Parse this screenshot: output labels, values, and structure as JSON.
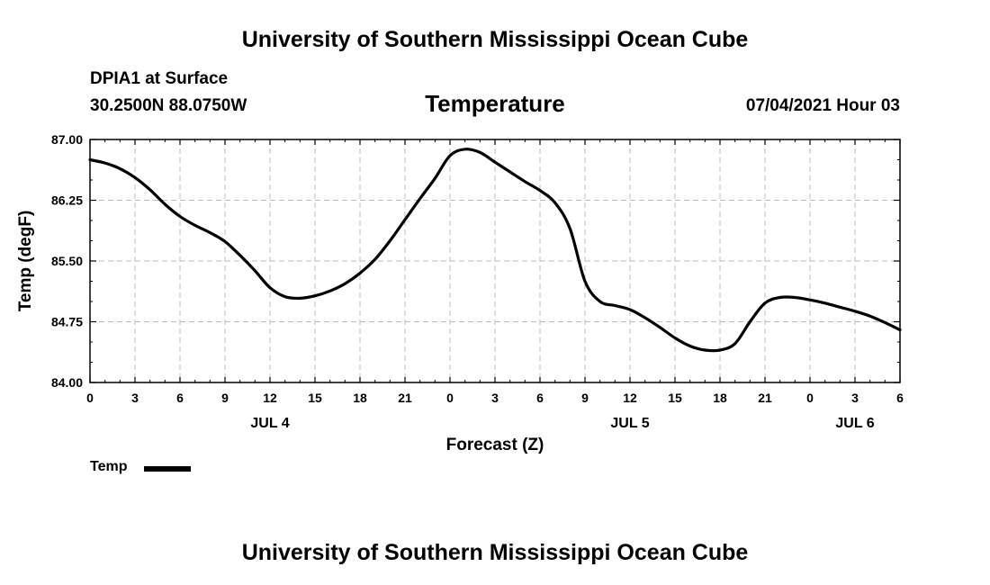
{
  "header": {
    "title": "University of Southern Mississippi Ocean Cube",
    "station": "DPIA1 at Surface",
    "coords": "30.2500N  88.0750W",
    "variable": "Temperature",
    "date": "07/04/2021 Hour 03"
  },
  "footer": {
    "title": "University of Southern Mississippi Ocean Cube"
  },
  "legend": {
    "label": "Temp"
  },
  "chart_data": {
    "type": "line",
    "title": "Temperature",
    "xlabel": "Forecast (Z)",
    "ylabel": "Temp (degF)",
    "xlim": [
      0,
      54
    ],
    "ylim": [
      84.0,
      87.0
    ],
    "x_ticks": [
      0,
      3,
      6,
      9,
      12,
      15,
      18,
      21,
      24,
      27,
      30,
      33,
      36,
      39,
      42,
      45,
      48,
      51,
      54
    ],
    "x_tick_labels": [
      "0",
      "3",
      "6",
      "9",
      "12",
      "15",
      "18",
      "21",
      "0",
      "3",
      "6",
      "9",
      "12",
      "15",
      "18",
      "21",
      "0",
      "3",
      "6"
    ],
    "y_ticks": [
      84.0,
      84.75,
      85.5,
      86.25,
      87.0
    ],
    "y_tick_labels": [
      "84.00",
      "84.75",
      "85.50",
      "86.25",
      "87.00"
    ],
    "day_labels": [
      {
        "x": 12,
        "label": "JUL 4"
      },
      {
        "x": 36,
        "label": "JUL 5"
      },
      {
        "x": 51,
        "label": "JUL 6"
      }
    ],
    "grid": true,
    "legend_position": "bottom-left",
    "series": [
      {
        "name": "Temp",
        "color": "#000000",
        "x": [
          0,
          1,
          2,
          3,
          4,
          5,
          6,
          7,
          8,
          9,
          10,
          11,
          12,
          13,
          14,
          15,
          16,
          17,
          18,
          19,
          20,
          21,
          22,
          23,
          24,
          25,
          26,
          27,
          28,
          29,
          30,
          31,
          32,
          33,
          34,
          35,
          36,
          37,
          38,
          39,
          40,
          41,
          42,
          43,
          44,
          45,
          46,
          47,
          48,
          49,
          50,
          51,
          52,
          53,
          54
        ],
        "values": [
          86.75,
          86.71,
          86.64,
          86.53,
          86.38,
          86.2,
          86.05,
          85.94,
          85.85,
          85.74,
          85.57,
          85.38,
          85.17,
          85.06,
          85.04,
          85.07,
          85.13,
          85.22,
          85.35,
          85.52,
          85.75,
          86.01,
          86.27,
          86.52,
          86.8,
          86.88,
          86.84,
          86.72,
          86.6,
          86.48,
          86.37,
          86.22,
          85.9,
          85.25,
          85.0,
          84.95,
          84.9,
          84.8,
          84.68,
          84.55,
          84.45,
          84.4,
          84.4,
          84.48,
          84.75,
          84.98,
          85.05,
          85.05,
          85.02,
          84.98,
          84.93,
          84.88,
          84.82,
          84.74,
          84.65
        ]
      }
    ]
  }
}
